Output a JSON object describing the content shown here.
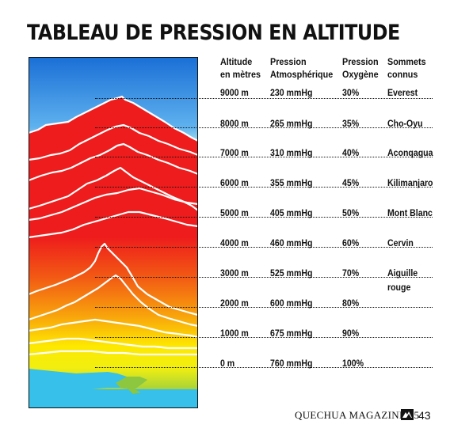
{
  "title": "TABLEAU DE PRESSION EN ALTITUDE",
  "headers": {
    "altitude": [
      "Altitude",
      "en mètres"
    ],
    "pression": [
      "Pression",
      "Atmosphérique"
    ],
    "oxygene": [
      "Pression",
      "Oxygène"
    ],
    "sommets": [
      "Sommets",
      "connus"
    ]
  },
  "rows": [
    {
      "altitude": "9000 m",
      "pression": "230 mmHg",
      "oxygene": "30%",
      "sommet": "Everest"
    },
    {
      "altitude": "8000 m",
      "pression": "265 mmHg",
      "oxygene": "35%",
      "sommet": "Cho-Oyu"
    },
    {
      "altitude": "7000 m",
      "pression": "310 mmHg",
      "oxygene": "40%",
      "sommet": "Aconqagua"
    },
    {
      "altitude": "6000 m",
      "pression": "355 mmHg",
      "oxygene": "45%",
      "sommet": "Kilimanjaro"
    },
    {
      "altitude": "5000 m",
      "pression": "405 mmHg",
      "oxygene": "50%",
      "sommet": "Mont Blanc"
    },
    {
      "altitude": "4000 m",
      "pression": "460 mmHg",
      "oxygene": "60%",
      "sommet": "Cervin"
    },
    {
      "altitude": "3000 m",
      "pression": "525 mmHg",
      "oxygene": "70%",
      "sommet": "Aiguille",
      "sommet_line2": "rouge"
    },
    {
      "altitude": "2000 m",
      "pression": "600 mmHg",
      "oxygene": "80%",
      "sommet": ""
    },
    {
      "altitude": "1000 m",
      "pression": "675 mmHg",
      "oxygene": "90%",
      "sommet": ""
    },
    {
      "altitude": "0 m",
      "pression": "760 mmHg",
      "oxygene": "100%",
      "sommet": ""
    }
  ],
  "footer": {
    "magazine": "QUECHUA MAGAZINE 15",
    "page": "43"
  },
  "colors": {
    "sky_top": "#1a6fd6",
    "red": "#ee1c1c",
    "orange": "#f57a10",
    "yellow": "#fff200",
    "green": "#8dc63f",
    "sea": "#3cc3ea"
  }
}
